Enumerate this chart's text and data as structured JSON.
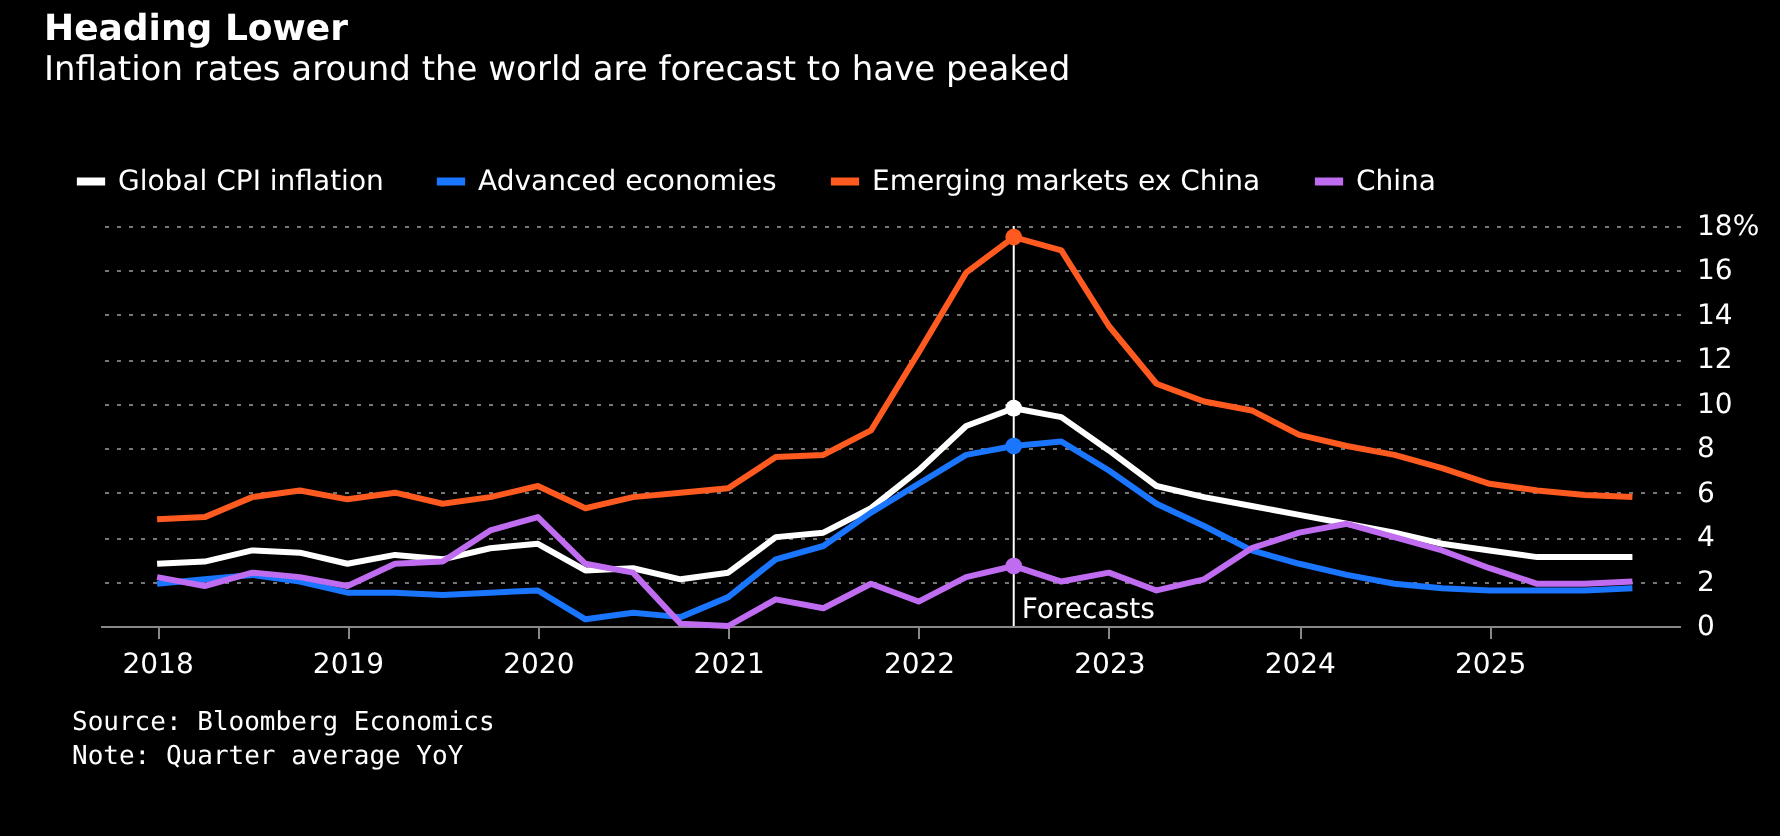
{
  "chart_data": {
    "type": "line",
    "title": "Heading Lower",
    "subtitle": "Inflation rates around the world are forecast to have peaked",
    "x": [
      2018.0,
      2018.25,
      2018.5,
      2018.75,
      2019.0,
      2019.25,
      2019.5,
      2019.75,
      2020.0,
      2020.25,
      2020.5,
      2020.75,
      2021.0,
      2021.25,
      2021.5,
      2021.75,
      2022.0,
      2022.25,
      2022.5,
      2022.75,
      2023.0,
      2023.25,
      2023.5,
      2023.75,
      2024.0,
      2024.25,
      2024.5,
      2024.75,
      2025.0,
      2025.25,
      2025.5,
      2025.75
    ],
    "series": [
      {
        "name": "Global CPI inflation",
        "color": "#ffffff",
        "values": [
          2.8,
          2.9,
          3.4,
          3.3,
          2.8,
          3.2,
          3.0,
          3.5,
          3.7,
          2.5,
          2.6,
          2.1,
          2.4,
          4.0,
          4.2,
          5.3,
          7.0,
          9.0,
          9.8,
          9.4,
          7.9,
          6.3,
          5.8,
          5.4,
          5.0,
          4.6,
          4.2,
          3.7,
          3.4,
          3.1,
          3.1,
          3.1
        ]
      },
      {
        "name": "Advanced economies",
        "color": "#1a75ff",
        "values": [
          1.9,
          2.1,
          2.3,
          2.0,
          1.5,
          1.5,
          1.4,
          1.5,
          1.6,
          0.3,
          0.6,
          0.4,
          1.3,
          3.0,
          3.6,
          5.1,
          6.4,
          7.7,
          8.1,
          8.3,
          7.0,
          5.5,
          4.5,
          3.4,
          2.8,
          2.3,
          1.9,
          1.7,
          1.6,
          1.6,
          1.6,
          1.7
        ]
      },
      {
        "name": "Emerging markets ex China",
        "color": "#ff5a1f",
        "values": [
          4.8,
          4.9,
          5.8,
          6.1,
          5.7,
          6.0,
          5.5,
          5.8,
          6.3,
          5.3,
          5.8,
          6.0,
          6.2,
          7.6,
          7.7,
          8.8,
          12.3,
          15.9,
          17.5,
          16.9,
          13.5,
          10.9,
          10.1,
          9.7,
          8.6,
          8.1,
          7.7,
          7.1,
          6.4,
          6.1,
          5.9,
          5.8
        ]
      },
      {
        "name": "China",
        "color": "#c06cf0",
        "values": [
          2.2,
          1.8,
          2.4,
          2.2,
          1.8,
          2.8,
          2.9,
          4.3,
          4.9,
          2.8,
          2.4,
          0.1,
          0.0,
          1.2,
          0.8,
          1.9,
          1.1,
          2.2,
          2.7,
          2.0,
          2.4,
          1.6,
          2.1,
          3.5,
          4.2,
          4.6,
          4.0,
          3.4,
          2.6,
          1.9,
          1.9,
          2.0
        ]
      }
    ],
    "xlim": [
      2017.7,
      2026.0
    ],
    "xticks": [
      2018,
      2019,
      2020,
      2021,
      2022,
      2023,
      2024,
      2025
    ],
    "ylim": [
      0,
      18
    ],
    "yticks": [
      0,
      2,
      4,
      6,
      8,
      10,
      12,
      14,
      16,
      {
        "value": 18,
        "label": "18%"
      }
    ],
    "ref_lines": [
      {
        "axis": "x",
        "value": 2022.5,
        "label": "Forecasts",
        "color": "#ffffff"
      }
    ],
    "annotations": [
      "Source: Bloomberg Economics",
      "Note: Quarter average YoY"
    ],
    "grid": "y",
    "legend": "top left",
    "marker": "none",
    "line_style": "solid"
  }
}
